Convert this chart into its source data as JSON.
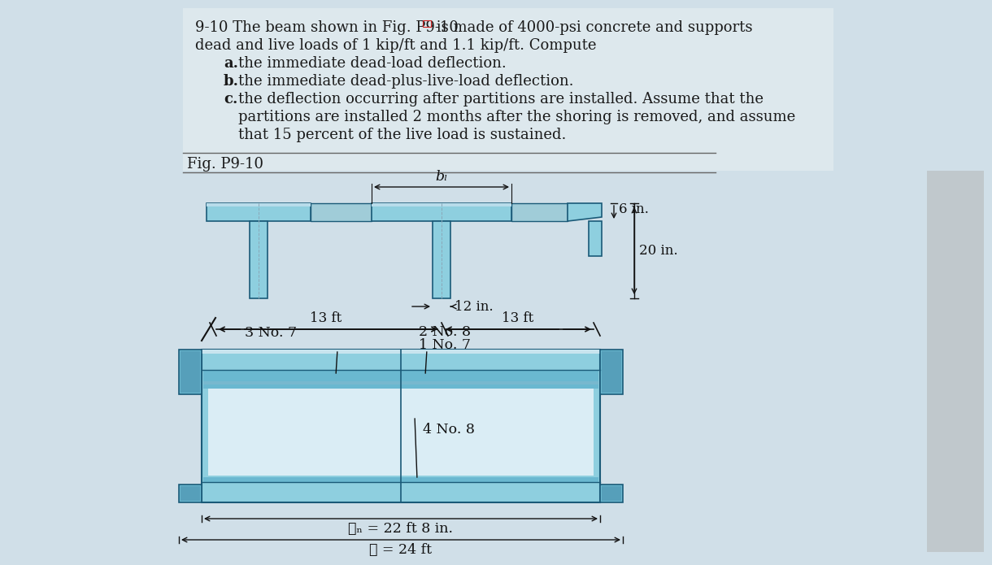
{
  "bg_color": "#d0dfe8",
  "text_bg": "#dde8ed",
  "text_color": "#1a1a1a",
  "beam_light": "#8ecfdf",
  "beam_mid": "#6ab8d0",
  "beam_dark": "#3a7a9a",
  "beam_outline": "#1a5a78",
  "dim_color": "#111111",
  "label_bf": "bₗ",
  "label_6in": "6 in.",
  "label_20in": "20 in.",
  "label_12in": "12 in.",
  "label_13ft_left": "13 ft",
  "label_13ft_right": "13 ft",
  "label_3no7": "3 No. 7",
  "label_2no8": "2 No. 8",
  "label_1no7": "1 No. 7",
  "label_4no8": "4 No. 8",
  "label_ln": "ℓₙ = 22 ft 8 in.",
  "label_l": "ℓ = 24 ft",
  "fig_label": "Fig. P9-10",
  "t1": "9-10 The beam shown in Fig. P9-10",
  "t1b": " is made of 4000-psi concrete and supports",
  "t2": "dead and live loads of 1 kip/ft and 1.1 kip/ft. Compute",
  "ta": "a.",
  "ta_rest": " the immediate dead-load deflection.",
  "tb": "b.",
  "tb_rest": " the immediate dead-plus-live-load deflection.",
  "tc": "c.",
  "tc_rest": " the deflection occurring after partitions are installed. Assume that the",
  "tc2": "partitions are installed 2 months after the shoring is removed, and assume",
  "tc3": "that 15 percent of the live load is sustained."
}
